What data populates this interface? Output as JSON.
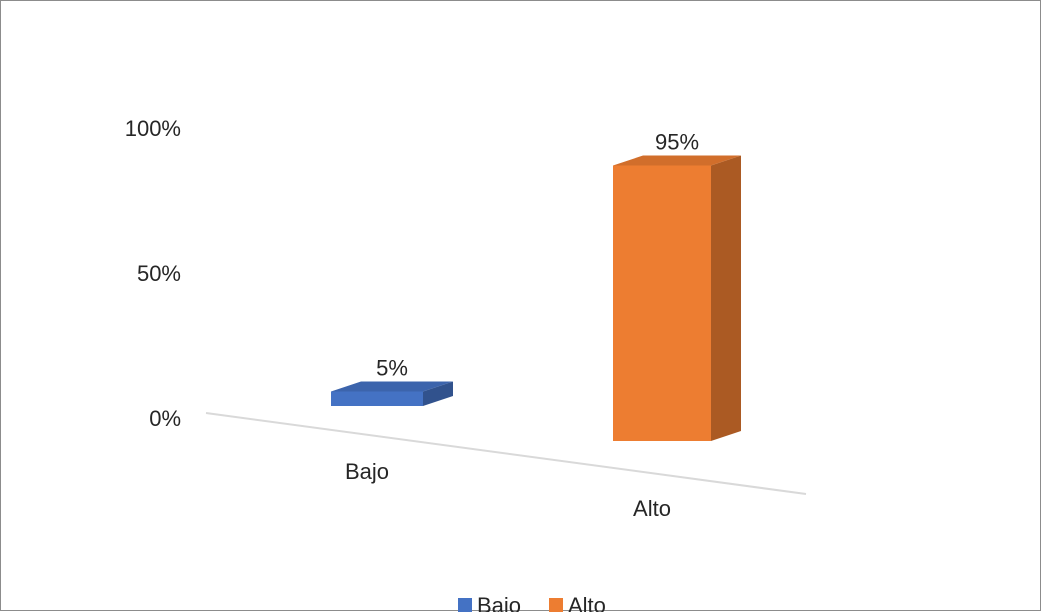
{
  "chart_data": {
    "type": "bar",
    "categories": [
      "Bajo",
      "Alto"
    ],
    "values": [
      5,
      95
    ],
    "data_labels": [
      "5%",
      "95%"
    ],
    "ylim": [
      0,
      100
    ],
    "y_ticks": [
      {
        "value": 0,
        "label": "0%"
      },
      {
        "value": 50,
        "label": "50%"
      },
      {
        "value": 100,
        "label": "100%"
      }
    ],
    "colors": [
      "#4472C4",
      "#ED7D31"
    ],
    "legend": {
      "placement": "bottom",
      "entries": [
        {
          "label": "Bajo",
          "color": "#4472C4"
        },
        {
          "label": "Alto",
          "color": "#ED7D31"
        }
      ]
    },
    "grid": false,
    "style": "3d-column"
  }
}
